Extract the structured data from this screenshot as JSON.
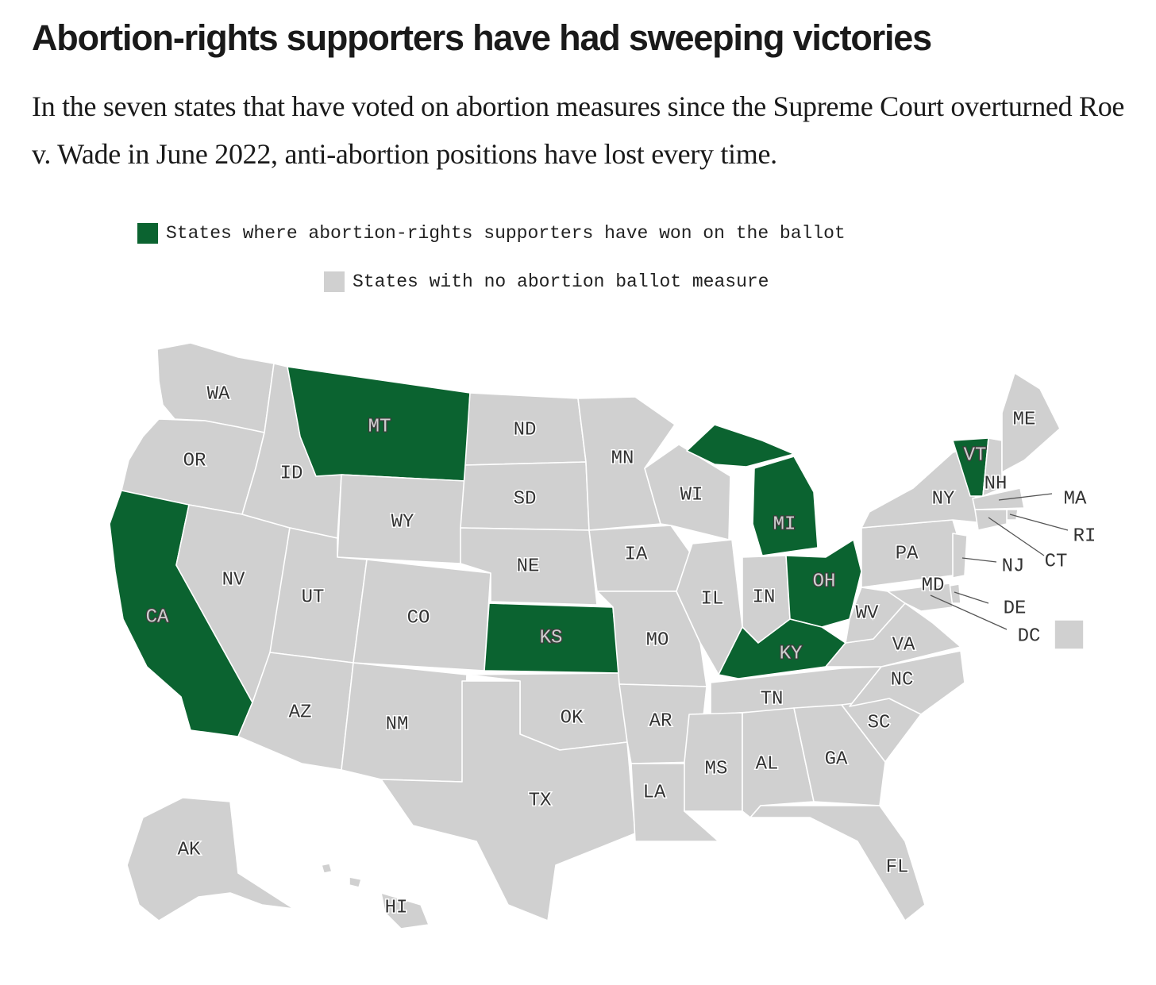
{
  "header": {
    "title": "Abortion-rights supporters have had sweeping victories",
    "subtitle": "In the seven states that have voted on abortion measures since the Supreme Court overturned Roe v. Wade in June 2022, anti-abortion positions have lost every time."
  },
  "legend": {
    "won": {
      "label": "States where abortion-rights supporters have won on the ballot",
      "color": "#0b6330"
    },
    "none": {
      "label": "States with no abortion ballot measure",
      "color": "#d0d0d0"
    }
  },
  "map": {
    "states": [
      {
        "code": "WA",
        "status": "none"
      },
      {
        "code": "OR",
        "status": "none"
      },
      {
        "code": "CA",
        "status": "won"
      },
      {
        "code": "NV",
        "status": "none"
      },
      {
        "code": "ID",
        "status": "none"
      },
      {
        "code": "MT",
        "status": "won"
      },
      {
        "code": "WY",
        "status": "none"
      },
      {
        "code": "UT",
        "status": "none"
      },
      {
        "code": "AZ",
        "status": "none"
      },
      {
        "code": "CO",
        "status": "none"
      },
      {
        "code": "NM",
        "status": "none"
      },
      {
        "code": "ND",
        "status": "none"
      },
      {
        "code": "SD",
        "status": "none"
      },
      {
        "code": "NE",
        "status": "none"
      },
      {
        "code": "KS",
        "status": "won"
      },
      {
        "code": "OK",
        "status": "none"
      },
      {
        "code": "TX",
        "status": "none"
      },
      {
        "code": "MN",
        "status": "none"
      },
      {
        "code": "IA",
        "status": "none"
      },
      {
        "code": "MO",
        "status": "none"
      },
      {
        "code": "AR",
        "status": "none"
      },
      {
        "code": "LA",
        "status": "none"
      },
      {
        "code": "WI",
        "status": "none"
      },
      {
        "code": "IL",
        "status": "none"
      },
      {
        "code": "MI",
        "status": "won"
      },
      {
        "code": "IN",
        "status": "none"
      },
      {
        "code": "OH",
        "status": "won"
      },
      {
        "code": "KY",
        "status": "won"
      },
      {
        "code": "TN",
        "status": "none"
      },
      {
        "code": "MS",
        "status": "none"
      },
      {
        "code": "AL",
        "status": "none"
      },
      {
        "code": "GA",
        "status": "none"
      },
      {
        "code": "FL",
        "status": "none"
      },
      {
        "code": "SC",
        "status": "none"
      },
      {
        "code": "NC",
        "status": "none"
      },
      {
        "code": "VA",
        "status": "none"
      },
      {
        "code": "WV",
        "status": "none"
      },
      {
        "code": "PA",
        "status": "none"
      },
      {
        "code": "NY",
        "status": "none"
      },
      {
        "code": "VT",
        "status": "won"
      },
      {
        "code": "NH",
        "status": "none"
      },
      {
        "code": "ME",
        "status": "none"
      },
      {
        "code": "MA",
        "status": "none"
      },
      {
        "code": "RI",
        "status": "none"
      },
      {
        "code": "CT",
        "status": "none"
      },
      {
        "code": "NJ",
        "status": "none"
      },
      {
        "code": "DE",
        "status": "none"
      },
      {
        "code": "MD",
        "status": "none"
      },
      {
        "code": "DC",
        "status": "none"
      },
      {
        "code": "AK",
        "status": "none"
      },
      {
        "code": "HI",
        "status": "none"
      }
    ]
  }
}
